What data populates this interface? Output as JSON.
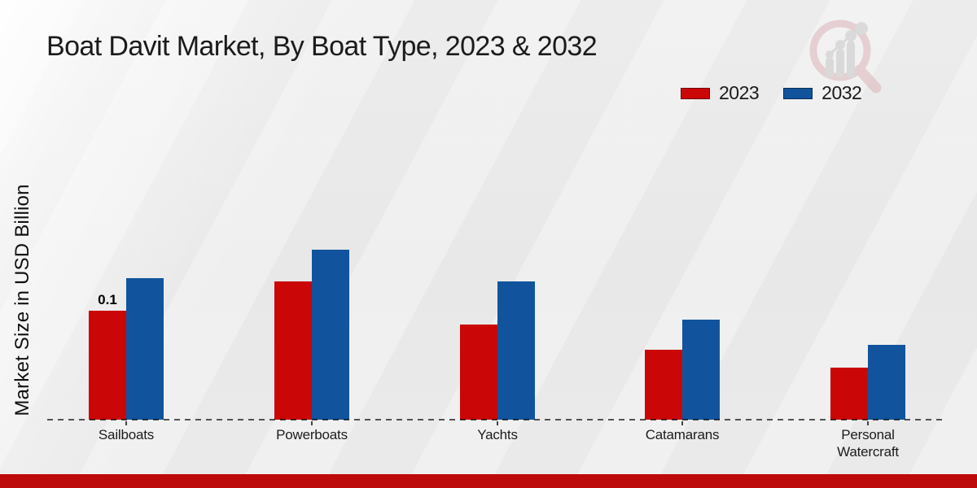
{
  "chart_data": {
    "type": "bar",
    "title": "Boat Davit Market, By Boat Type, 2023 & 2032",
    "ylabel": "Market Size in USD Billion",
    "xlabel": "",
    "categories": [
      "Sailboats",
      "Powerboats",
      "Yachts",
      "Catamarans",
      "Personal Watercraft"
    ],
    "series": [
      {
        "name": "2023",
        "color": "#cb0606",
        "values": [
          0.1,
          0.127,
          0.087,
          0.064,
          0.048
        ]
      },
      {
        "name": "2032",
        "color": "#11549d",
        "values": [
          0.13,
          0.156,
          0.127,
          0.092,
          0.069
        ]
      }
    ],
    "annotations": [
      {
        "series_index": 0,
        "category_index": 0,
        "text": "0.1"
      }
    ],
    "ylim": [
      0,
      0.16
    ],
    "grid": false,
    "legend_position": "top-right",
    "baseline_style": "dashed",
    "units": "USD Billion"
  },
  "footer": {
    "accent_color": "#bd0a0a"
  },
  "watermark": {
    "name": "market-research-future-logo"
  }
}
